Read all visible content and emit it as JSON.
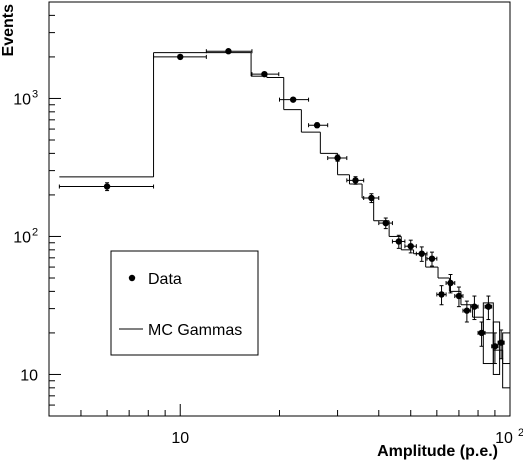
{
  "chart_data": {
    "type": "scatter",
    "xlabel": "Amplitude (p.e.)",
    "ylabel": "Events",
    "x_scale": "log",
    "y_scale": "log",
    "xlim": [
      4,
      100
    ],
    "ylim": [
      5,
      5000
    ],
    "x_tick_labels": [
      {
        "value": 10,
        "label": "10"
      },
      {
        "value": 100,
        "label": "10",
        "exponent": "2"
      }
    ],
    "y_tick_labels": [
      {
        "value": 10,
        "label": "10"
      },
      {
        "value": 100,
        "label": "10",
        "exponent": "2"
      },
      {
        "value": 1000,
        "label": "10",
        "exponent": "3"
      }
    ],
    "legend": {
      "placement": "lower-left",
      "entries": [
        {
          "label": "Data",
          "marker": "point"
        },
        {
          "label": "MC Gammas",
          "marker": "line"
        }
      ]
    },
    "series": [
      {
        "name": "Data",
        "kind": "points-with-errors",
        "color": "#000000",
        "points": [
          {
            "x": 6.0,
            "xerr": [
              4.3,
              8.3
            ],
            "y": 230,
            "yerr": 15
          },
          {
            "x": 10.0,
            "xerr": [
              8.3,
              12.0
            ],
            "y": 2000,
            "yerr": 45
          },
          {
            "x": 14.0,
            "xerr": [
              12.0,
              16.5
            ],
            "y": 2200,
            "yerr": 47
          },
          {
            "x": 18.0,
            "xerr": [
              16.5,
              19.9
            ],
            "y": 1500,
            "yerr": 39
          },
          {
            "x": 22.0,
            "xerr": [
              20.0,
              24.5
            ],
            "y": 980,
            "yerr": 31
          },
          {
            "x": 26.0,
            "xerr": [
              24.5,
              28.0
            ],
            "y": 640,
            "yerr": 25
          },
          {
            "x": 30.0,
            "xerr": [
              28.0,
              32.0
            ],
            "y": 370,
            "yerr": 19
          },
          {
            "x": 34.0,
            "xerr": [
              32.0,
              36.0
            ],
            "y": 255,
            "yerr": 16
          },
          {
            "x": 38.0,
            "xerr": [
              36.0,
              40.0
            ],
            "y": 190,
            "yerr": 14
          },
          {
            "x": 42.0,
            "xerr": [
              40.0,
              44.0
            ],
            "y": 125,
            "yerr": 11
          },
          {
            "x": 46.0,
            "xerr": [
              44.0,
              48.0
            ],
            "y": 92,
            "yerr": 10
          },
          {
            "x": 50.0,
            "xerr": [
              48.0,
              52.0
            ],
            "y": 85,
            "yerr": 9
          },
          {
            "x": 54.0,
            "xerr": [
              52.0,
              56.0
            ],
            "y": 75,
            "yerr": 9
          },
          {
            "x": 58.0,
            "xerr": [
              56.0,
              60.0
            ],
            "y": 69,
            "yerr": 8
          },
          {
            "x": 62.0,
            "xerr": [
              60.0,
              64.0
            ],
            "y": 38,
            "yerr": 6
          },
          {
            "x": 66.0,
            "xerr": [
              64.0,
              68.0
            ],
            "y": 46,
            "yerr": 7
          },
          {
            "x": 70.0,
            "xerr": [
              68.0,
              72.0
            ],
            "y": 37,
            "yerr": 6
          },
          {
            "x": 74.0,
            "xerr": [
              72.0,
              76.0
            ],
            "y": 29,
            "yerr": 5
          },
          {
            "x": 78.0,
            "xerr": [
              76.0,
              80.0
            ],
            "y": 31,
            "yerr": 6
          },
          {
            "x": 82.0,
            "xerr": [
              80.0,
              84.0
            ],
            "y": 20,
            "yerr": 4
          },
          {
            "x": 86.0,
            "xerr": [
              84.0,
              88.0
            ],
            "y": 31,
            "yerr": 6
          },
          {
            "x": 90.0,
            "xerr": [
              88.0,
              92.0
            ],
            "y": 16,
            "yerr": 4
          },
          {
            "x": 94.0,
            "xerr": [
              92.0,
              96.0
            ],
            "y": 17,
            "yerr": 4
          }
        ]
      },
      {
        "name": "MC Gammas",
        "kind": "histogram-step",
        "color": "#000000",
        "bins": [
          {
            "lo": 4.3,
            "hi": 8.3,
            "y": 270
          },
          {
            "lo": 8.3,
            "hi": 16.4,
            "y": 2150
          },
          {
            "lo": 16.4,
            "hi": 18.3,
            "y": 1450
          },
          {
            "lo": 18.3,
            "hi": 20.6,
            "y": 1420
          },
          {
            "lo": 20.6,
            "hi": 23.3,
            "y": 830
          },
          {
            "lo": 23.3,
            "hi": 26.6,
            "y": 570
          },
          {
            "lo": 26.6,
            "hi": 30.0,
            "y": 400
          },
          {
            "lo": 30.0,
            "hi": 32.6,
            "y": 280
          },
          {
            "lo": 32.6,
            "hi": 35.6,
            "y": 240
          },
          {
            "lo": 35.6,
            "hi": 38.6,
            "y": 190
          },
          {
            "lo": 38.6,
            "hi": 43.0,
            "y": 130
          },
          {
            "lo": 43.0,
            "hi": 46.8,
            "y": 100
          },
          {
            "lo": 46.8,
            "hi": 51.0,
            "y": 80
          },
          {
            "lo": 51.0,
            "hi": 55.5,
            "y": 75
          },
          {
            "lo": 55.5,
            "hi": 60.5,
            "y": 60
          },
          {
            "lo": 60.5,
            "hi": 65.5,
            "y": 50
          },
          {
            "lo": 65.5,
            "hi": 71.0,
            "y": 40
          },
          {
            "lo": 71.0,
            "hi": 77.0,
            "y": 32
          },
          {
            "lo": 77.0,
            "hi": 83.0,
            "y": 26
          },
          {
            "lo": 83.0,
            "hi": 89.0,
            "y": 20
          },
          {
            "lo": 89.0,
            "hi": 95.0,
            "y": 15
          },
          {
            "lo": 95.0,
            "hi": 100.0,
            "y": 12
          }
        ],
        "uncertainty_boxes": [
          {
            "lo": 83.0,
            "hi": 89.0,
            "y_low": 12,
            "y_high": 33
          },
          {
            "lo": 89.0,
            "hi": 93.0,
            "y_low": 10,
            "y_high": 24
          },
          {
            "lo": 95.0,
            "hi": 100.0,
            "y_low": 8,
            "y_high": 20
          }
        ]
      }
    ]
  }
}
